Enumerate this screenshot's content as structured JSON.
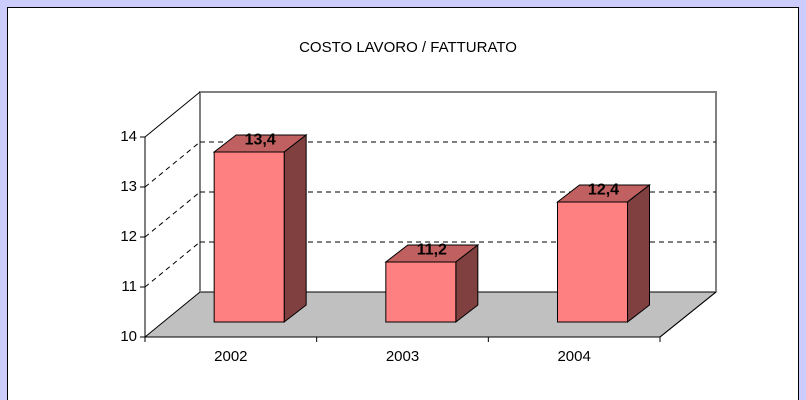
{
  "chart_data": {
    "type": "bar",
    "title": "COSTO LAVORO / FATTURATO",
    "categories": [
      "2002",
      "2003",
      "2004"
    ],
    "values": [
      13.4,
      11.2,
      12.4
    ],
    "value_labels": [
      "13,4",
      "11,2",
      "12,4"
    ],
    "color": "#ff8080",
    "ylim": [
      10,
      14
    ],
    "yticks": [
      10,
      11,
      12,
      13,
      14
    ],
    "grid": true
  }
}
